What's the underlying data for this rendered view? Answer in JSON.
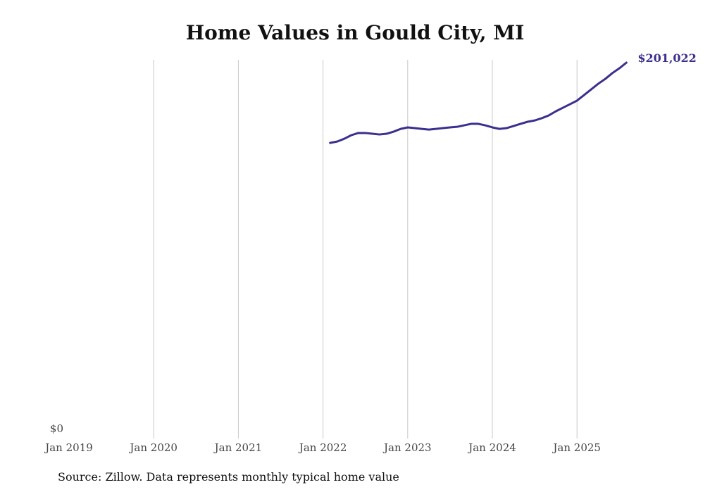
{
  "chart_data": {
    "type": "line",
    "title": "Home Values in Gould City, MI",
    "xlabel": "",
    "ylabel": "",
    "x_ticks": [
      "Jan 2019",
      "Jan 2020",
      "Jan 2021",
      "Jan 2022",
      "Jan 2023",
      "Jan 2024",
      "Jan 2025"
    ],
    "y_ticks": [
      "$0"
    ],
    "ylim": [
      0,
      201022
    ],
    "grid": "vertical",
    "color": "#3b2f8f",
    "end_label": "$201,022",
    "series": [
      {
        "name": "Typical home value",
        "start": "Feb 2022",
        "start_month_index": 37,
        "values": [
          158100,
          158800,
          160300,
          162200,
          163400,
          163400,
          163000,
          162600,
          163000,
          164100,
          165600,
          166400,
          166000,
          165600,
          165200,
          165600,
          166000,
          166400,
          166700,
          167500,
          168300,
          168300,
          167500,
          166400,
          165600,
          166000,
          167100,
          168300,
          169400,
          170100,
          171300,
          172800,
          175000,
          176900,
          178800,
          180700,
          183700,
          186700,
          189700,
          192300,
          195400,
          198000,
          201022
        ]
      }
    ]
  },
  "source": "Source: Zillow. Data represents monthly typical home value"
}
